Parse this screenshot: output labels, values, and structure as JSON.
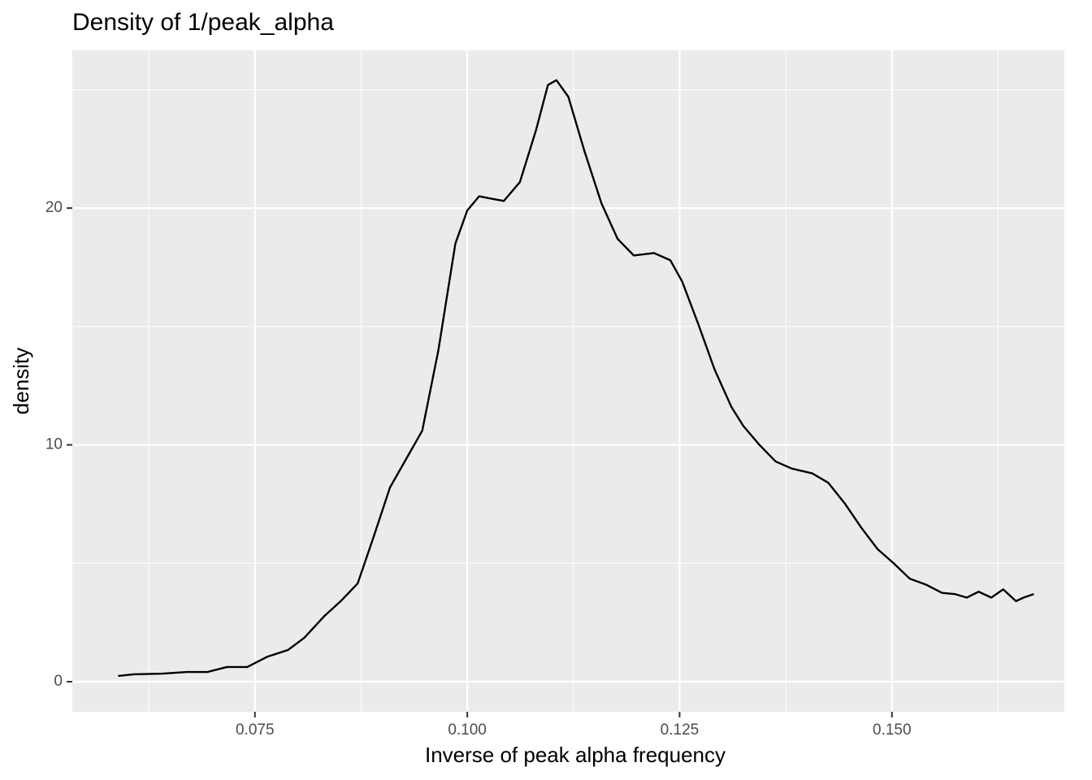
{
  "chart_data": {
    "type": "line",
    "title": "Density of 1/peak_alpha",
    "xlabel": "Inverse of peak alpha frequency",
    "ylabel": "density",
    "x": [
      0.0589,
      0.0607,
      0.0641,
      0.067,
      0.0694,
      0.0717,
      0.0741,
      0.0765,
      0.0789,
      0.0808,
      0.0832,
      0.0851,
      0.0871,
      0.089,
      0.0909,
      0.0928,
      0.0947,
      0.0966,
      0.0986,
      0.1,
      0.1014,
      0.1028,
      0.1043,
      0.1062,
      0.1081,
      0.1095,
      0.1105,
      0.1119,
      0.1138,
      0.1158,
      0.1177,
      0.1196,
      0.122,
      0.1239,
      0.1253,
      0.1272,
      0.1291,
      0.1311,
      0.1325,
      0.1344,
      0.1363,
      0.1382,
      0.1406,
      0.1425,
      0.1445,
      0.1464,
      0.1483,
      0.1502,
      0.1521,
      0.154,
      0.1559,
      0.1574,
      0.1588,
      0.1602,
      0.1617,
      0.1631,
      0.1646,
      0.1655,
      0.1667
    ],
    "values": [
      0.24,
      0.31,
      0.34,
      0.41,
      0.41,
      0.62,
      0.62,
      1.06,
      1.34,
      1.85,
      2.78,
      3.4,
      4.15,
      6.14,
      8.2,
      9.4,
      10.6,
      14.0,
      18.5,
      19.9,
      20.5,
      20.4,
      20.3,
      21.1,
      23.3,
      25.2,
      25.4,
      24.7,
      22.4,
      20.2,
      18.7,
      18.0,
      18.1,
      17.8,
      16.9,
      15.1,
      13.2,
      11.6,
      10.8,
      10.0,
      9.3,
      9.0,
      8.8,
      8.4,
      7.5,
      6.5,
      5.6,
      5.0,
      4.35,
      4.1,
      3.75,
      3.7,
      3.55,
      3.8,
      3.55,
      3.9,
      3.4,
      3.55,
      3.7
    ],
    "color": "#000000",
    "xlim": [
      0.0535,
      0.1703
    ],
    "ylim": [
      -1.27,
      26.66
    ],
    "xticks": [
      0.075,
      {
        "value": 0.1,
        "label": "0.100"
      },
      0.125,
      {
        "value": 0.15,
        "label": "0.150"
      }
    ],
    "yticks": [
      0,
      10,
      20
    ],
    "minor_xticks": [
      0.0625,
      0.0875,
      0.1125,
      0.1375,
      0.1625
    ],
    "minor_yticks": [
      5,
      15,
      25
    ],
    "grid": true
  }
}
